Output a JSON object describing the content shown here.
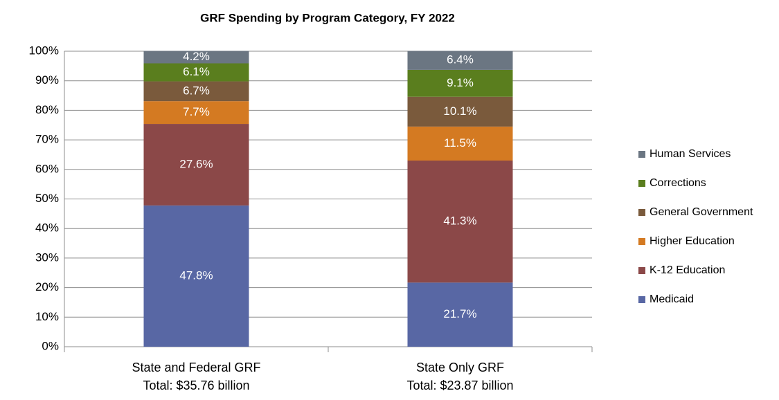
{
  "chart_data": {
    "type": "stacked_bar",
    "title": "GRF Spending by Program Category, FY 2022",
    "categories": [
      [
        "State and Federal GRF",
        "Total: $35.76 billion"
      ],
      [
        "State Only GRF",
        "Total: $23.87 billion"
      ]
    ],
    "series": [
      {
        "name": "Medicaid",
        "color": "#5867a4",
        "values": [
          47.8,
          21.7
        ],
        "value_labels": [
          "47.8%",
          "21.7%"
        ]
      },
      {
        "name": "K-12 Education",
        "color": "#8b4848",
        "values": [
          27.6,
          41.3
        ],
        "value_labels": [
          "27.6%",
          "41.3%"
        ]
      },
      {
        "name": "Higher Education",
        "color": "#d47a22",
        "values": [
          7.7,
          11.5
        ],
        "value_labels": [
          "7.7%",
          "11.5%"
        ]
      },
      {
        "name": "General Government",
        "color": "#7a5a3c",
        "values": [
          6.7,
          10.1
        ],
        "value_labels": [
          "6.7%",
          "10.1%"
        ]
      },
      {
        "name": "Corrections",
        "color": "#5a7e1e",
        "values": [
          6.1,
          9.1
        ],
        "value_labels": [
          "6.1%",
          "9.1%"
        ]
      },
      {
        "name": "Human Services",
        "color": "#6b7682",
        "values": [
          4.2,
          6.4
        ],
        "value_labels": [
          "4.2%",
          "6.4%"
        ]
      }
    ],
    "ylim": [
      0,
      100
    ],
    "yticks": [
      {
        "value": 0,
        "label": "0%"
      },
      {
        "value": 10,
        "label": "10%"
      },
      {
        "value": 20,
        "label": "20%"
      },
      {
        "value": 30,
        "label": "30%"
      },
      {
        "value": 40,
        "label": "40%"
      },
      {
        "value": 50,
        "label": "50%"
      },
      {
        "value": 60,
        "label": "60%"
      },
      {
        "value": 70,
        "label": "70%"
      },
      {
        "value": 80,
        "label": "80%"
      },
      {
        "value": 90,
        "label": "90%"
      },
      {
        "value": 100,
        "label": "100%"
      }
    ],
    "grid": true,
    "legend": "right"
  }
}
